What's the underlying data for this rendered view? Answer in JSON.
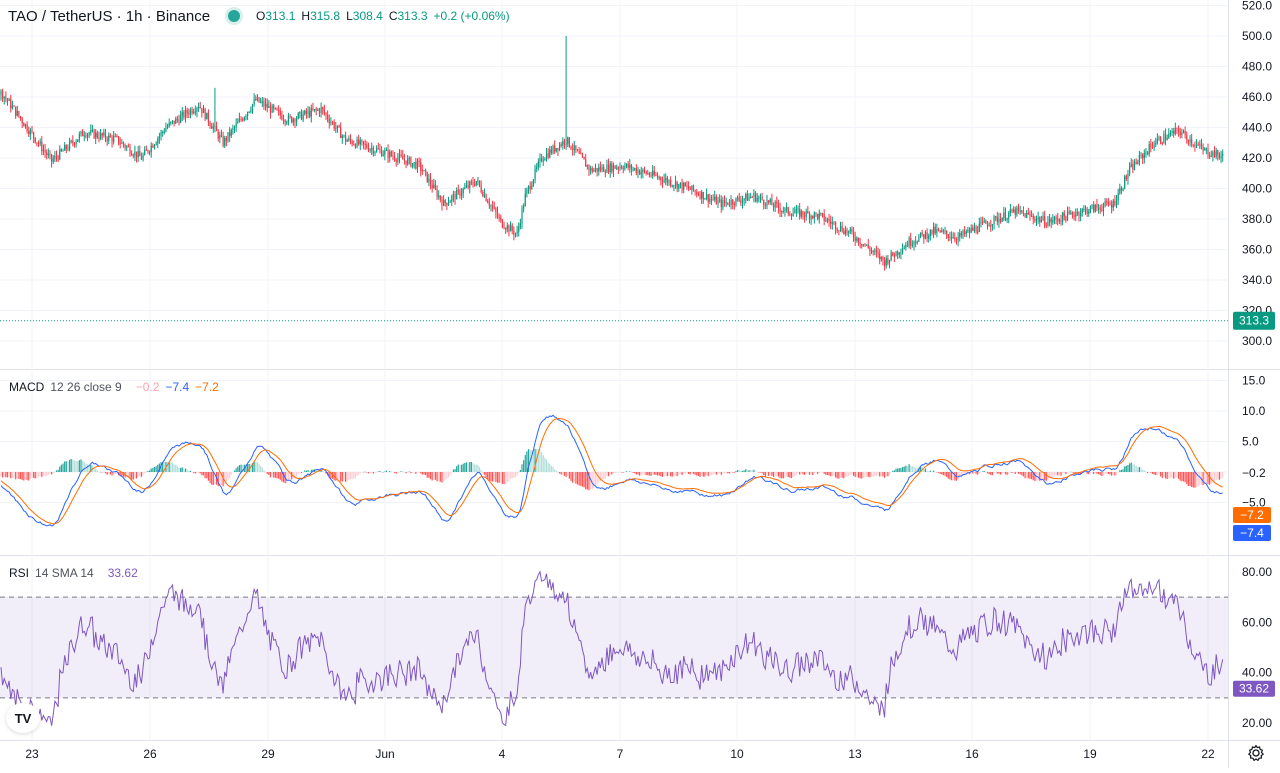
{
  "header": {
    "symbol": "TAO / TetherUS · 1h · Binance",
    "o_label": "O",
    "o_value": "313.1",
    "h_label": "H",
    "h_value": "315.8",
    "l_label": "L",
    "l_value": "308.4",
    "c_label": "C",
    "c_value": "313.3",
    "change": "+0.2 (+0.06%)"
  },
  "macd_title": {
    "name": "MACD",
    "params": "12 26 close 9",
    "hist": "−0.2",
    "macd": "−7.4",
    "signal": "−7.2"
  },
  "rsi_title": {
    "name": "RSI",
    "params": "14 SMA 14",
    "value": "33.62"
  },
  "logo_text": "TV",
  "colors": {
    "up": "#089981",
    "down": "#f23645",
    "macd": "#2962ff",
    "signal": "#ff6d00",
    "rsi": "#7e57c2",
    "band": "#7e57c2"
  },
  "chart_data": [
    {
      "type": "candlestick",
      "title": "TAO / TetherUS · 1h · Binance",
      "xlabel": "",
      "ylabel": "",
      "x_ticks": [
        "23",
        "26",
        "29",
        "Jun",
        "4",
        "7",
        "10",
        "13",
        "16",
        "19",
        "22"
      ],
      "y_ticks": [
        300,
        320,
        340,
        360,
        380,
        400,
        420,
        440,
        460,
        480,
        500,
        520
      ],
      "ylim": [
        290,
        520
      ],
      "last_price": 313.3,
      "last_price_label": "313.3",
      "last_ohlc": {
        "open": 313.1,
        "high": 315.8,
        "low": 308.4,
        "close": 313.3
      },
      "bars_per_day": 24,
      "anchors": [
        [
          0,
          470
        ],
        [
          8,
          475
        ],
        [
          30,
          462
        ],
        [
          45,
          440
        ],
        [
          60,
          418
        ],
        [
          80,
          437
        ],
        [
          100,
          432
        ],
        [
          115,
          420
        ],
        [
          130,
          440
        ],
        [
          150,
          455
        ],
        [
          165,
          430
        ],
        [
          185,
          458
        ],
        [
          205,
          445
        ],
        [
          225,
          452
        ],
        [
          240,
          432
        ],
        [
          260,
          425
        ],
        [
          285,
          415
        ],
        [
          300,
          390
        ],
        [
          320,
          405
        ],
        [
          335,
          378
        ],
        [
          345,
          370
        ],
        [
          350,
          395
        ],
        [
          360,
          420
        ],
        [
          375,
          432
        ],
        [
          390,
          412
        ],
        [
          410,
          415
        ],
        [
          430,
          408
        ],
        [
          450,
          400
        ],
        [
          470,
          390
        ],
        [
          490,
          395
        ],
        [
          510,
          385
        ],
        [
          530,
          382
        ],
        [
          550,
          370
        ],
        [
          570,
          352
        ],
        [
          585,
          365
        ],
        [
          600,
          372
        ],
        [
          615,
          368
        ],
        [
          630,
          376
        ],
        [
          650,
          385
        ],
        [
          670,
          378
        ],
        [
          690,
          385
        ],
        [
          710,
          390
        ],
        [
          720,
          412
        ],
        [
          735,
          430
        ],
        [
          750,
          438
        ],
        [
          765,
          425
        ],
        [
          780,
          420
        ],
        [
          800,
          425
        ],
        [
          810,
          395
        ],
        [
          825,
          392
        ],
        [
          840,
          398
        ],
        [
          855,
          368
        ],
        [
          870,
          363
        ],
        [
          885,
          372
        ],
        [
          900,
          368
        ],
        [
          920,
          356
        ],
        [
          940,
          365
        ],
        [
          960,
          362
        ],
        [
          975,
          370
        ],
        [
          990,
          378
        ],
        [
          1005,
          385
        ],
        [
          1015,
          360
        ],
        [
          1030,
          348
        ],
        [
          1040,
          338
        ],
        [
          1055,
          352
        ],
        [
          1070,
          350
        ],
        [
          1085,
          365
        ],
        [
          1100,
          360
        ],
        [
          1115,
          352
        ],
        [
          1130,
          350
        ],
        [
          1145,
          356
        ],
        [
          1160,
          340
        ],
        [
          1175,
          342
        ],
        [
          1185,
          340
        ],
        [
          1195,
          320
        ],
        [
          1205,
          312
        ],
        [
          1212,
          313.3
        ]
      ],
      "spikes": [
        {
          "x": 375,
          "high": 500
        },
        {
          "x": 160,
          "high": 466
        }
      ]
    },
    {
      "type": "line",
      "title": "MACD 12 26 close 9",
      "y_ticks": [
        15.0,
        10.0,
        5.0,
        0,
        -5.0
      ],
      "y_tick_labels": [
        "15.0",
        "10.0",
        "5.0",
        "",
        "−5.0"
      ],
      "ylim": [
        -12,
        15.5
      ],
      "series": [
        {
          "name": "MACD",
          "color": "#2962ff",
          "last": -7.4,
          "last_label": "−7.4"
        },
        {
          "name": "Signal",
          "color": "#ff6d00",
          "last": -7.2,
          "last_label": "−7.2"
        },
        {
          "name": "Histogram",
          "last": -0.2,
          "last_label": "−0.2"
        }
      ]
    },
    {
      "type": "line",
      "title": "RSI 14 SMA 14",
      "y_ticks": [
        20,
        40,
        60,
        80
      ],
      "y_tick_labels": [
        "20.00",
        "40.00",
        "60.00",
        "80.00"
      ],
      "ylim": [
        15,
        83
      ],
      "band": [
        30,
        70
      ],
      "series": [
        {
          "name": "RSI",
          "color": "#7e57c2",
          "last": 33.62,
          "last_label": "33.62"
        }
      ]
    }
  ]
}
